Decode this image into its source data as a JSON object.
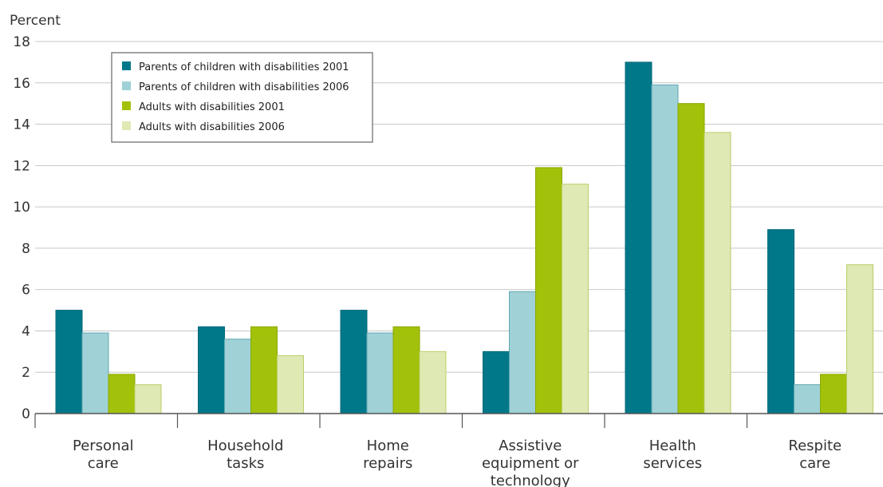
{
  "chart_data": {
    "type": "bar",
    "ylabel": "Percent",
    "xlabel": "",
    "ylim": [
      0,
      18
    ],
    "yticks": [
      "0",
      "2",
      "4",
      "6",
      "8",
      "10",
      "12",
      "14",
      "16",
      "18"
    ],
    "grid": true,
    "legend_position": "top-left",
    "categories": [
      [
        "Personal",
        "care"
      ],
      [
        "Household",
        "tasks"
      ],
      [
        "Home",
        "repairs"
      ],
      [
        "Assistive",
        "equipment or",
        "technology"
      ],
      [
        "Health",
        "services"
      ],
      [
        "Respite",
        "care"
      ]
    ],
    "series": [
      {
        "name": "Parents of children with disabilities 2001",
        "color": "#00788a",
        "values": [
          5.0,
          4.2,
          5.0,
          3.0,
          17.0,
          8.9
        ]
      },
      {
        "name": "Parents of children with disabilities 2006",
        "color": "#9fd1d6",
        "values": [
          3.9,
          3.6,
          3.9,
          5.9,
          15.9,
          1.4
        ]
      },
      {
        "name": "Adults with disabilities 2001",
        "color": "#a2c10a",
        "values": [
          1.9,
          4.2,
          4.2,
          11.9,
          15.0,
          1.9
        ]
      },
      {
        "name": "Adults with disabilities 2006",
        "color": "#dfe9b4",
        "values": [
          1.4,
          2.8,
          3.0,
          11.1,
          13.6,
          7.2
        ]
      }
    ]
  }
}
